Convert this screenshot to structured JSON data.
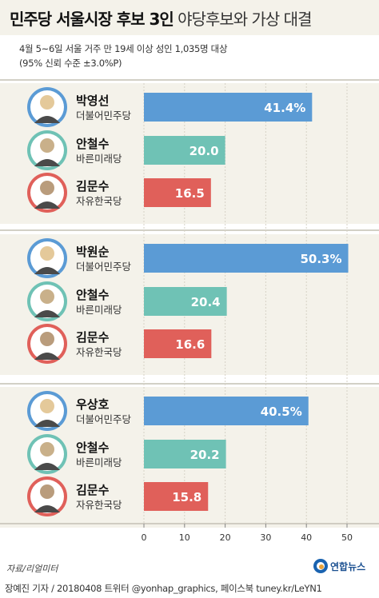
{
  "header": {
    "title_bold": "민주당 서울시장 후보 3인",
    "title_light": "야당후보와 가상 대결",
    "subtitle_line1": "4월 5~6일 서울 거주 만 19세 이상 성인 1,035명 대상",
    "subtitle_line2": "(95% 신뢰 수준 ±3.0%P)"
  },
  "colors": {
    "democratic": "#5b9bd5",
    "bareun": "#6fc2b5",
    "liberty_korea": "#e0605a",
    "panel_bg": "#f4f2ea",
    "divider": "#c4c0b4"
  },
  "chart_data": [
    {
      "type": "bar",
      "orientation": "horizontal",
      "categories": [
        "박영선",
        "안철수",
        "김문수"
      ],
      "parties": [
        "더불어민주당",
        "바른미래당",
        "자유한국당"
      ],
      "values": [
        41.4,
        20.0,
        16.5
      ],
      "value_labels": [
        "41.4%",
        "20.0",
        "16.5"
      ],
      "colors": [
        "#5b9bd5",
        "#6fc2b5",
        "#e0605a"
      ]
    },
    {
      "type": "bar",
      "orientation": "horizontal",
      "categories": [
        "박원순",
        "안철수",
        "김문수"
      ],
      "parties": [
        "더불어민주당",
        "바른미래당",
        "자유한국당"
      ],
      "values": [
        50.3,
        20.4,
        16.6
      ],
      "value_labels": [
        "50.3%",
        "20.4",
        "16.6"
      ],
      "colors": [
        "#5b9bd5",
        "#6fc2b5",
        "#e0605a"
      ]
    },
    {
      "type": "bar",
      "orientation": "horizontal",
      "categories": [
        "우상호",
        "안철수",
        "김문수"
      ],
      "parties": [
        "더불어민주당",
        "바른미래당",
        "자유한국당"
      ],
      "values": [
        40.5,
        20.2,
        15.8
      ],
      "value_labels": [
        "40.5%",
        "20.2",
        "15.8"
      ],
      "colors": [
        "#5b9bd5",
        "#6fc2b5",
        "#e0605a"
      ]
    }
  ],
  "axis": {
    "ticks": [
      "0",
      "10",
      "20",
      "30",
      "40",
      "50"
    ],
    "xlim": [
      0,
      50
    ]
  },
  "footer": {
    "source": "자료/리얼미터",
    "credit": "장예진 기자 / 20180408 트위터 @yonhap_graphics, 페이스북 tuney.kr/LeYN1",
    "logo": "연합뉴스"
  }
}
